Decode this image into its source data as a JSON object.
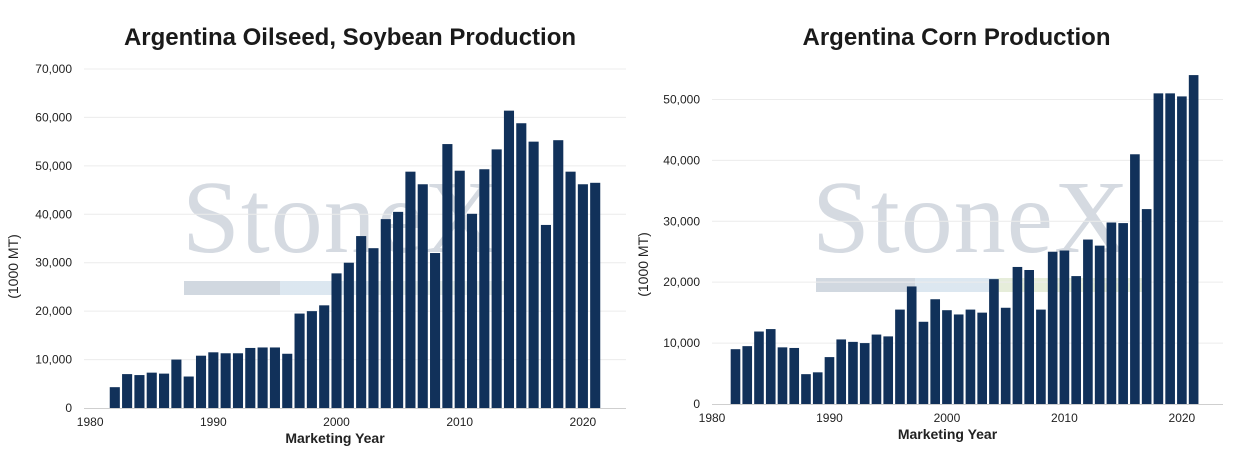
{
  "watermark": "StoneX",
  "colors": {
    "bar": "#11315a",
    "grid": "#ececec",
    "axis": "#cfcfcf",
    "text": "#222222"
  },
  "chart_data": [
    {
      "type": "bar",
      "title": "Argentina Oilseed, Soybean Production",
      "xlabel": "Marketing Year",
      "ylabel": "(1000 MT)",
      "ylim": [
        0,
        70000
      ],
      "yticks": [
        0,
        10000,
        20000,
        30000,
        40000,
        50000,
        60000,
        70000
      ],
      "ytick_labels": [
        "0",
        "10,000",
        "20,000",
        "30,000",
        "40,000",
        "50,000",
        "60,000",
        "70,000"
      ],
      "xlim": [
        1979.5,
        2023.5
      ],
      "xticks": [
        1980,
        1990,
        2000,
        2010,
        2020
      ],
      "xtick_labels": [
        "1980",
        "1990",
        "2000",
        "2010",
        "2020"
      ],
      "grid": true,
      "x": [
        1982,
        1983,
        1984,
        1985,
        1986,
        1987,
        1988,
        1989,
        1990,
        1991,
        1992,
        1993,
        1994,
        1995,
        1996,
        1997,
        1998,
        1999,
        2000,
        2001,
        2002,
        2003,
        2004,
        2005,
        2006,
        2007,
        2008,
        2009,
        2010,
        2011,
        2012,
        2013,
        2014,
        2015,
        2016,
        2017,
        2018,
        2019,
        2020,
        2021
      ],
      "values": [
        4300,
        7000,
        6800,
        7300,
        7100,
        10000,
        6500,
        10800,
        11500,
        11300,
        11300,
        12400,
        12500,
        12500,
        11200,
        19500,
        20000,
        21200,
        27800,
        30000,
        35500,
        33000,
        39000,
        40500,
        48800,
        46200,
        32000,
        54500,
        49000,
        40100,
        49300,
        53400,
        61400,
        58800,
        55000,
        37800,
        55300,
        48800,
        46200,
        46500
      ]
    },
    {
      "type": "bar",
      "title": "Argentina Corn Production",
      "xlabel": "Marketing Year",
      "ylabel": "(1000 MT)",
      "ylim": [
        0,
        55000
      ],
      "yticks": [
        0,
        10000,
        20000,
        30000,
        40000,
        50000
      ],
      "ytick_labels": [
        "0",
        "10,000",
        "20,000",
        "30,000",
        "40,000",
        "50,000"
      ],
      "xlim": [
        1980,
        2023.5
      ],
      "xticks": [
        1980,
        1990,
        2000,
        2010,
        2020
      ],
      "xtick_labels": [
        "1980",
        "1990",
        "2000",
        "2010",
        "2020"
      ],
      "grid": true,
      "x": [
        1982,
        1983,
        1984,
        1985,
        1986,
        1987,
        1988,
        1989,
        1990,
        1991,
        1992,
        1993,
        1994,
        1995,
        1996,
        1997,
        1998,
        1999,
        2000,
        2001,
        2002,
        2003,
        2004,
        2005,
        2006,
        2007,
        2008,
        2009,
        2010,
        2011,
        2012,
        2013,
        2014,
        2015,
        2016,
        2017,
        2018,
        2019,
        2020,
        2021
      ],
      "values": [
        9000,
        9500,
        11900,
        12300,
        9300,
        9200,
        4900,
        5200,
        7700,
        10600,
        10200,
        10000,
        11400,
        11100,
        15500,
        19300,
        13500,
        17200,
        15400,
        14700,
        15500,
        15000,
        20500,
        15800,
        22500,
        22000,
        15500,
        25000,
        25200,
        21000,
        27000,
        26000,
        29800,
        29700,
        41000,
        32000,
        51000,
        51000,
        50500,
        54000
      ]
    }
  ]
}
